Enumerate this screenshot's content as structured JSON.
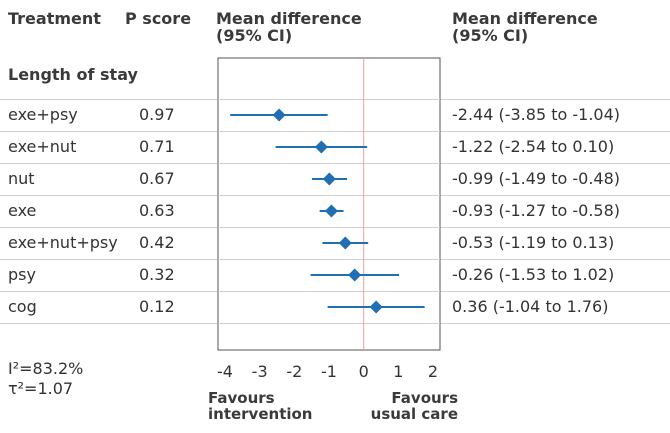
{
  "header": {
    "treatment": "Treatment",
    "pscore": "P score",
    "md_line1": "Mean difference",
    "md_line2": "(95% CI)",
    "md2_line1": "Mean difference",
    "md2_line2": "(95% CI)"
  },
  "section_label": "Length of stay",
  "rows": [
    {
      "treatment": "exe+psy",
      "pscore": "0.97",
      "ci_text": "-2.44 (-3.85 to -1.04)"
    },
    {
      "treatment": "exe+nut",
      "pscore": "0.71",
      "ci_text": "-1.22 (-2.54 to 0.10)"
    },
    {
      "treatment": "nut",
      "pscore": "0.67",
      "ci_text": "-0.99 (-1.49 to -0.48)"
    },
    {
      "treatment": "exe",
      "pscore": "0.63",
      "ci_text": "-0.93 (-1.27 to -0.58)"
    },
    {
      "treatment": "exe+nut+psy",
      "pscore": "0.42",
      "ci_text": "-0.53 (-1.19 to 0.13)"
    },
    {
      "treatment": "psy",
      "pscore": "0.32",
      "ci_text": "-0.26 (-1.53 to 1.02)"
    },
    {
      "treatment": "cog",
      "pscore": "0.12",
      "ci_text": "0.36 (-1.04 to 1.76)"
    }
  ],
  "stats": {
    "i2": "I²=83.2%",
    "tau2": "τ²=1.07"
  },
  "favours": {
    "left_line1": "Favours",
    "left_line2": "intervention",
    "right_line1": "Favours",
    "right_line2": "usual care"
  },
  "colors": {
    "marker": "#1f6fb2",
    "zero_line": "#f0a0a0",
    "box": "#555555"
  },
  "chart_data": {
    "type": "forest",
    "xlim": [
      -4,
      2
    ],
    "ticks": [
      -4,
      -3,
      -2,
      -1,
      0,
      1,
      2
    ],
    "reference_line": 0,
    "points": [
      {
        "label": "exe+psy",
        "value": -2.44,
        "low": -3.85,
        "high": -1.04
      },
      {
        "label": "exe+nut",
        "value": -1.22,
        "low": -2.54,
        "high": 0.1
      },
      {
        "label": "nut",
        "value": -0.99,
        "low": -1.49,
        "high": -0.48
      },
      {
        "label": "exe",
        "value": -0.93,
        "low": -1.27,
        "high": -0.58
      },
      {
        "label": "exe+nut+psy",
        "value": -0.53,
        "low": -1.19,
        "high": 0.13
      },
      {
        "label": "psy",
        "value": -0.26,
        "low": -1.53,
        "high": 1.02
      },
      {
        "label": "cog",
        "value": 0.36,
        "low": -1.04,
        "high": 1.76
      }
    ]
  }
}
